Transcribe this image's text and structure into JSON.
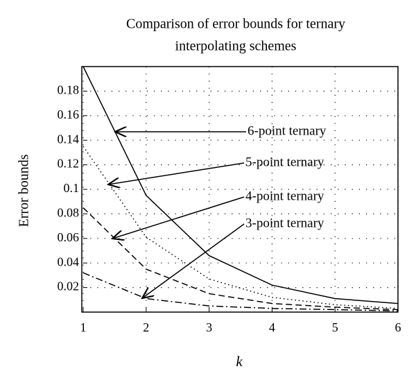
{
  "chart_data": {
    "type": "line",
    "title": [
      "Comparison of error bounds for ternary",
      "interpolating schemes"
    ],
    "x_label": "k",
    "y_label": "Error bounds",
    "x": [
      1,
      2,
      3,
      4,
      5,
      6
    ],
    "series": [
      {
        "name": "6-point ternary",
        "color": "#000000",
        "dash": "solid",
        "values": [
          0.2,
          0.095,
          0.046,
          0.022,
          0.011,
          0.007
        ]
      },
      {
        "name": "5-point ternary",
        "color": "#000000",
        "dash": "dotted",
        "values": [
          0.135,
          0.061,
          0.027,
          0.012,
          0.006,
          0.003
        ]
      },
      {
        "name": "4-point ternary",
        "color": "#000000",
        "dash": "dashed",
        "values": [
          0.085,
          0.035,
          0.015,
          0.007,
          0.004,
          0.002
        ]
      },
      {
        "name": "3-point ternary",
        "color": "#000000",
        "dash": "dashdot",
        "values": [
          0.032,
          0.011,
          0.005,
          0.003,
          0.002,
          0.001
        ]
      }
    ],
    "xlim": [
      1,
      6
    ],
    "xticks": [
      1,
      2,
      3,
      4,
      5,
      6
    ],
    "ylim": [
      0,
      0.2
    ],
    "yticks": [
      0.02,
      0.04,
      0.06,
      0.08,
      0.1,
      0.12,
      0.14,
      0.16,
      0.18
    ],
    "grid": true
  }
}
